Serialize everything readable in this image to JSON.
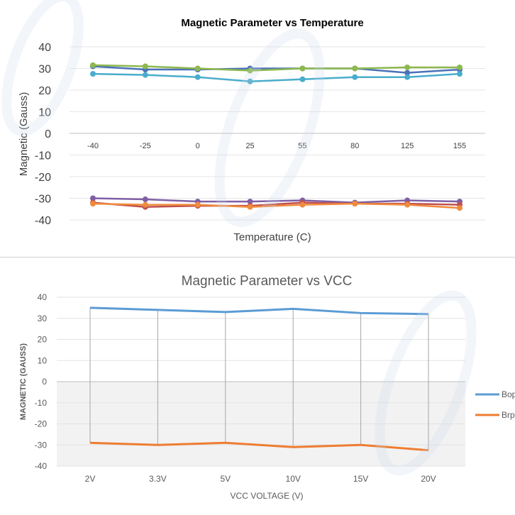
{
  "chart_data": [
    {
      "type": "line",
      "title": "Magnetic Parameter vs Temperature",
      "xlabel": "Temperature (C)",
      "ylabel": "Magnetic (Gauss)",
      "categories": [
        "-40",
        "-25",
        "0",
        "25",
        "55",
        "80",
        "125",
        "155"
      ],
      "yticks": [
        "40",
        "30",
        "20",
        "10",
        "0",
        "-10",
        "-20",
        "-30",
        "-40"
      ],
      "ylim": [
        -40,
        40
      ],
      "grid": true,
      "series": [
        {
          "color": "#4a72b8",
          "values": [
            31,
            29.5,
            29.5,
            30,
            30,
            30,
            28,
            29.5
          ]
        },
        {
          "color": "#8db84f",
          "values": [
            31.5,
            31,
            30,
            29,
            30,
            30,
            30.5,
            30.5
          ]
        },
        {
          "color": "#4aaccc",
          "values": [
            27.5,
            27,
            26,
            24,
            25,
            26,
            26,
            27.5
          ]
        },
        {
          "color": "#7f5fa5",
          "values": [
            -30,
            -30.5,
            -31.5,
            -31.5,
            -31,
            -32,
            -31,
            -31.5
          ]
        },
        {
          "color": "#c0504d",
          "values": [
            -32,
            -34,
            -33.5,
            -33.5,
            -32,
            -32.5,
            -32.5,
            -33
          ]
        },
        {
          "color": "#f08b3e",
          "values": [
            -32.5,
            -33,
            -33,
            -34,
            -33,
            -32.5,
            -33,
            -34.5
          ]
        }
      ]
    },
    {
      "type": "line",
      "title": "Magnetic Parameter vs VCC",
      "xlabel": "VCC VOLTAGE (V)",
      "ylabel": "MAGNETIC (GAUSS)",
      "categories": [
        "2V",
        "3.3V",
        "5V",
        "10V",
        "15V",
        "20V"
      ],
      "yticks": [
        "40",
        "30",
        "20",
        "10",
        "0",
        "-10",
        "-20",
        "-30",
        "-40"
      ],
      "ylim": [
        -40,
        40
      ],
      "grid": true,
      "legend_position": "right",
      "series": [
        {
          "name": "Bop",
          "color": "#5b9bd5",
          "values": [
            35,
            34,
            33,
            34.5,
            32.5,
            32
          ]
        },
        {
          "name": "Brp",
          "color": "#ed7d31",
          "values": [
            -29,
            -30,
            -29,
            -31,
            -30,
            -32.5
          ]
        }
      ]
    }
  ]
}
